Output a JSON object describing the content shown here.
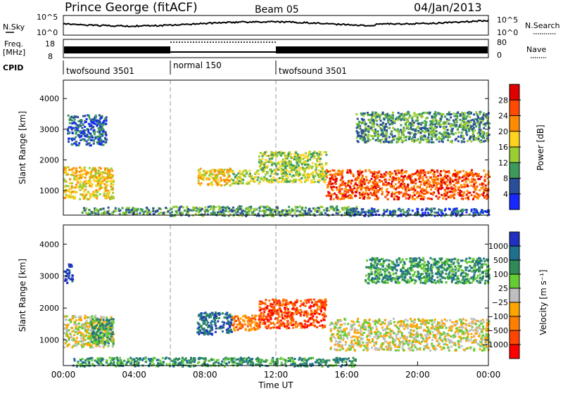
{
  "header": {
    "title": "Prince George (fitACF)",
    "beam": "Beam 05",
    "date": "04/Jan/2013"
  },
  "noise_panel": {
    "left_label": "N.Sky",
    "right_label": "N.Search",
    "left_ticks": [
      "10^5",
      "10^0"
    ],
    "right_ticks": [
      "10^5",
      "10^0"
    ]
  },
  "freq_panel": {
    "left_label_1": "Freq.",
    "left_label_2": "[MHz]",
    "left_ticks": [
      "18",
      "8"
    ],
    "right_label": "Nave",
    "right_ticks": [
      "80",
      "0"
    ]
  },
  "cpid": {
    "label": "CPID",
    "segments": [
      {
        "label": "twofsound 3501",
        "start_h": 0,
        "end_h": 6
      },
      {
        "label": "normal 150",
        "start_h": 6,
        "end_h": 12
      },
      {
        "label": "twofsound 3501",
        "start_h": 12,
        "end_h": 24
      }
    ]
  },
  "power_colorbar": {
    "label": "Power [dB]",
    "ticks": [
      "28",
      "24",
      "20",
      "16",
      "12",
      "8",
      "4"
    ],
    "colors": [
      "#e00000",
      "#ff4a00",
      "#ff8c00",
      "#ffd21e",
      "#9acd32",
      "#3c9a5a",
      "#2a4f9a",
      "#1428ff"
    ]
  },
  "velocity_colorbar": {
    "label": "Velocity [m s⁻¹]",
    "ticks": [
      "1000",
      "500",
      "100",
      "25",
      "−25",
      "−100",
      "−500",
      "−1000"
    ],
    "colors": [
      "#2030c0",
      "#1f6f8f",
      "#2e8b57",
      "#66cc33",
      "#bebebe",
      "#ffa500",
      "#ff7f00",
      "#ff4500",
      "#ff0000"
    ]
  },
  "chart_data": [
    {
      "type": "heatmap",
      "name": "power",
      "ylabel": "Slant Range [km]",
      "yticks": [
        1000,
        2000,
        3000,
        4000
      ],
      "ylim": [
        200,
        4600
      ],
      "xlim": [
        0,
        24
      ],
      "regions": [
        {
          "t0": 0.0,
          "t1": 2.8,
          "r0": 750,
          "r1": 1800,
          "level": 4
        },
        {
          "t0": 0.2,
          "t1": 2.4,
          "r0": 2500,
          "r1": 3500,
          "level": 1
        },
        {
          "t0": 1.0,
          "t1": 6.0,
          "r0": 250,
          "r1": 480,
          "level": 2
        },
        {
          "t0": 7.5,
          "t1": 9.5,
          "r0": 1200,
          "r1": 1750,
          "level": 4
        },
        {
          "t0": 9.5,
          "t1": 11.0,
          "r0": 1250,
          "r1": 1700,
          "level": 3
        },
        {
          "t0": 11.0,
          "t1": 14.8,
          "r0": 1300,
          "r1": 2300,
          "level": 3
        },
        {
          "t0": 6.0,
          "t1": 16.5,
          "r0": 200,
          "r1": 520,
          "level": 2
        },
        {
          "t0": 14.8,
          "t1": 24.0,
          "r0": 750,
          "r1": 1700,
          "level": 6
        },
        {
          "t0": 16.5,
          "t1": 24.0,
          "r0": 2600,
          "r1": 3600,
          "level": 2
        },
        {
          "t0": 16.0,
          "t1": 24.0,
          "r0": 200,
          "r1": 450,
          "level": 1
        }
      ]
    },
    {
      "type": "heatmap",
      "name": "velocity",
      "ylabel": "Slant Range [km]",
      "yticks": [
        1000,
        2000,
        3000,
        4000
      ],
      "ylim": [
        200,
        4600
      ],
      "xlim": [
        0,
        24
      ],
      "xticks": [
        "00:00",
        "04:00",
        "08:00",
        "12:00",
        "16:00",
        "20:00",
        "00:00"
      ],
      "xlabel": "Time UT",
      "regions": [
        {
          "t0": 0.0,
          "t1": 2.8,
          "r0": 800,
          "r1": 1800,
          "level": 4
        },
        {
          "t0": 1.5,
          "t1": 2.8,
          "r0": 900,
          "r1": 1700,
          "level": 6
        },
        {
          "t0": 0.0,
          "t1": 0.5,
          "r0": 2800,
          "r1": 3400,
          "level": 8
        },
        {
          "t0": 7.5,
          "t1": 9.5,
          "r0": 1200,
          "r1": 1900,
          "level": 7
        },
        {
          "t0": 9.5,
          "t1": 11.0,
          "r0": 1300,
          "r1": 1800,
          "level": 2
        },
        {
          "t0": 11.0,
          "t1": 14.8,
          "r0": 1400,
          "r1": 2300,
          "level": 1
        },
        {
          "t0": 15.0,
          "t1": 24.0,
          "r0": 700,
          "r1": 1700,
          "level": 4
        },
        {
          "t0": 0.5,
          "t1": 16.5,
          "r0": 200,
          "r1": 480,
          "level": 6
        },
        {
          "t0": 17.0,
          "t1": 24.0,
          "r0": 2800,
          "r1": 3600,
          "level": 6
        }
      ]
    }
  ]
}
